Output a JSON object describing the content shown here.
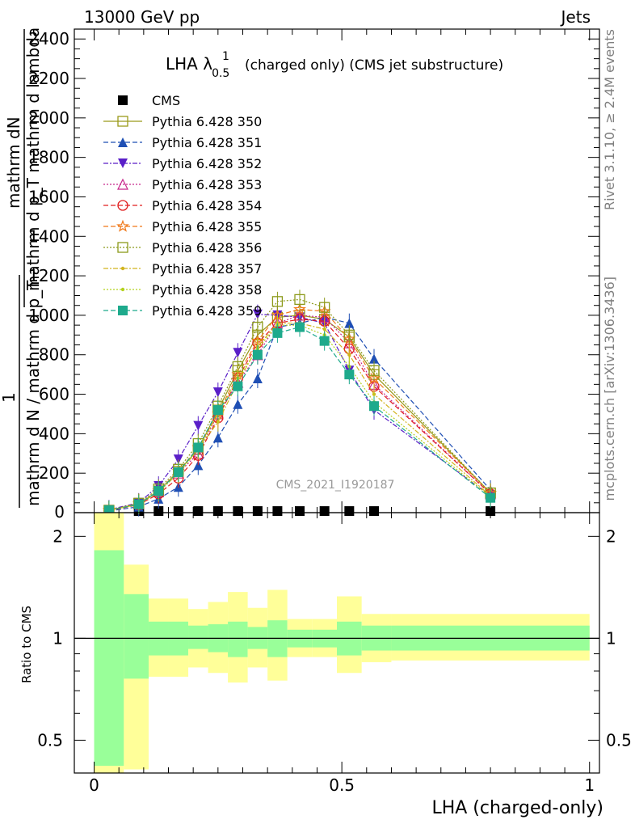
{
  "header": {
    "left": "13000 GeV pp",
    "right": "Jets"
  },
  "side_labels": {
    "rivet": "Rivet 3.1.10, ≥ 2.4M events",
    "mcplots": "mcplots.cern.ch [arXiv:1306.3436]"
  },
  "colors": {
    "band_inner": "#99ff99",
    "band_outer": "#ffff99",
    "data": "#000000"
  },
  "chart_data": [
    {
      "type": "line",
      "title_main": "LHA λ",
      "title_sup": "1",
      "title_sub": "0.5",
      "title_rest": "(charged only) (CMS jet substructure)",
      "watermark": "CMS_2021_I1920187",
      "ylabel_top": "mathrm dN",
      "ylabel_top2": "mathrm d p_T mathrm d lambda",
      "ylabel_mid": "1",
      "ylabel_bottom": "mathrm d N / mathrm d p_T",
      "xlim": [
        -0.04,
        1.02
      ],
      "ylim": [
        0,
        2450
      ],
      "yticks": [
        200,
        400,
        600,
        800,
        1000,
        1200,
        1400,
        1600,
        1800,
        2000,
        2200,
        2400
      ],
      "ytick_labels": [
        "200",
        "400",
        "600",
        "800",
        "1000",
        "1200",
        "1400",
        "1600",
        "1800",
        "2000",
        "2200",
        "2400"
      ],
      "zero_label": "0",
      "x": [
        0.03,
        0.09,
        0.13,
        0.17,
        0.21,
        0.25,
        0.29,
        0.33,
        0.37,
        0.415,
        0.465,
        0.515,
        0.565,
        0.8
      ],
      "series": [
        {
          "name": "CMS",
          "color": "#000000",
          "marker": "square-filled",
          "dash": "",
          "values": [
            8,
            8,
            8,
            8,
            8,
            8,
            8,
            8,
            8,
            8,
            8,
            8,
            8,
            8
          ]
        },
        {
          "name": "Pythia 6.428 350",
          "color": "#9a9a1a",
          "marker": "square-open",
          "dash": "",
          "values": [
            12,
            45,
            110,
            210,
            320,
            520,
            720,
            900,
            990,
            1000,
            980,
            890,
            700,
            100
          ]
        },
        {
          "name": "Pythia 6.428 351",
          "color": "#1f4fb4",
          "marker": "triangle-up",
          "dash": "6,3",
          "values": [
            8,
            30,
            70,
            130,
            240,
            380,
            550,
            680,
            940,
            960,
            990,
            960,
            780,
            115
          ]
        },
        {
          "name": "Pythia 6.428 352",
          "color": "#5a1fc8",
          "marker": "triangle-down",
          "dash": "6,2,2,2",
          "values": [
            15,
            50,
            135,
            270,
            440,
            610,
            810,
            1005,
            1000,
            990,
            960,
            720,
            520,
            85
          ]
        },
        {
          "name": "Pythia 6.428 353",
          "color": "#c8288c",
          "marker": "triangle-open",
          "dash": "2,2",
          "values": [
            12,
            45,
            105,
            200,
            300,
            500,
            660,
            800,
            960,
            1000,
            990,
            860,
            650,
            95
          ]
        },
        {
          "name": "Pythia 6.428 354",
          "color": "#e01e1e",
          "marker": "circle-open",
          "dash": "6,3",
          "values": [
            10,
            40,
            95,
            175,
            290,
            480,
            680,
            860,
            960,
            980,
            970,
            830,
            640,
            95
          ]
        },
        {
          "name": "Pythia 6.428 355",
          "color": "#f07818",
          "marker": "star-open",
          "dash": "6,3",
          "values": [
            12,
            45,
            110,
            210,
            330,
            500,
            700,
            870,
            1000,
            1030,
            1020,
            880,
            680,
            100
          ]
        },
        {
          "name": "Pythia 6.428 356",
          "color": "#8c9a1a",
          "marker": "square-open",
          "dash": "2,2",
          "values": [
            12,
            48,
            120,
            220,
            350,
            540,
            740,
            940,
            1070,
            1080,
            1040,
            900,
            720,
            100
          ]
        },
        {
          "name": "Pythia 6.428 357",
          "color": "#d2b41e",
          "marker": "dot",
          "dash": "6,2,2,2",
          "values": [
            12,
            42,
            105,
            200,
            320,
            460,
            660,
            840,
            960,
            960,
            930,
            800,
            600,
            85
          ]
        },
        {
          "name": "Pythia 6.428 358",
          "color": "#b4d21e",
          "marker": "dot",
          "dash": "2,2",
          "values": [
            12,
            42,
            105,
            200,
            320,
            500,
            680,
            830,
            950,
            950,
            900,
            740,
            560,
            80
          ]
        },
        {
          "name": "Pythia 6.428 359",
          "color": "#1eaa8c",
          "marker": "square-filled",
          "dash": "6,3",
          "values": [
            12,
            42,
            110,
            205,
            330,
            520,
            640,
            800,
            910,
            940,
            870,
            700,
            540,
            75
          ]
        }
      ]
    },
    {
      "type": "area",
      "ylabel": "Ratio to CMS",
      "xlabel": "LHA (charged-only)",
      "xlim": [
        -0.04,
        1.02
      ],
      "ylim": [
        0.4,
        2.35
      ],
      "log_y": true,
      "reference": 1,
      "xticks": [
        0,
        0.5,
        1
      ],
      "xtick_labels": [
        "0",
        "0.5",
        "1"
      ],
      "yticks": [
        0.5,
        1,
        2
      ],
      "ytick_labels": [
        "0.5",
        "1",
        "2"
      ],
      "bin_edges": [
        0,
        0.06,
        0.11,
        0.15,
        0.19,
        0.23,
        0.27,
        0.31,
        0.35,
        0.39,
        0.44,
        0.49,
        0.54,
        0.6,
        1.0
      ],
      "band_inner_up": [
        1.82,
        1.35,
        1.12,
        1.12,
        1.09,
        1.1,
        1.12,
        1.08,
        1.13,
        1.06,
        1.06,
        1.12,
        1.09,
        1.09
      ],
      "band_inner_down": [
        0.42,
        0.76,
        0.89,
        0.89,
        0.93,
        0.91,
        0.88,
        0.93,
        0.88,
        0.94,
        0.94,
        0.89,
        0.92,
        0.92
      ],
      "band_outer_up": [
        2.35,
        1.65,
        1.31,
        1.31,
        1.22,
        1.28,
        1.37,
        1.23,
        1.39,
        1.14,
        1.14,
        1.33,
        1.18,
        1.18
      ],
      "band_outer_down": [
        0.4,
        0.41,
        0.77,
        0.77,
        0.82,
        0.79,
        0.74,
        0.82,
        0.75,
        0.88,
        0.88,
        0.79,
        0.85,
        0.86
      ]
    }
  ]
}
